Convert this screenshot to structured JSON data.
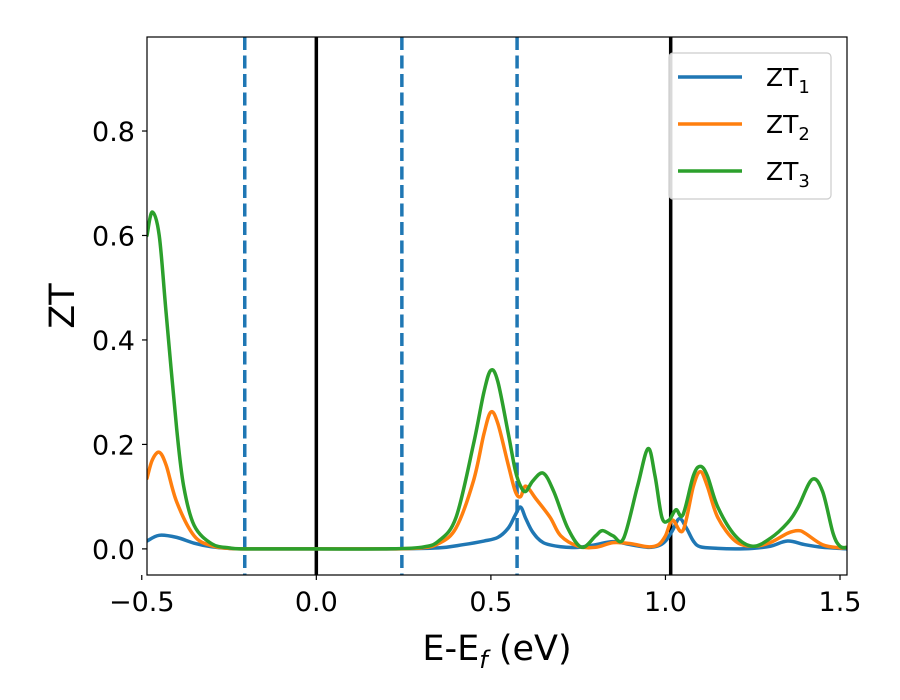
{
  "chart_data": {
    "type": "line",
    "xlabel": {
      "main": "E-E",
      "sub": "f",
      "unit": " (eV)"
    },
    "ylabel": "ZT",
    "xlim": [
      -0.485,
      1.52
    ],
    "ylim": [
      -0.05,
      0.98
    ],
    "x_ticks": [
      -0.5,
      0.0,
      0.5,
      1.0,
      1.5
    ],
    "x_tick_labels": [
      "−0.5",
      "0.0",
      "0.5",
      "1.0",
      "1.5"
    ],
    "y_ticks": [
      0.0,
      0.2,
      0.4,
      0.6,
      0.8
    ],
    "y_tick_labels": [
      "0.0",
      "0.2",
      "0.4",
      "0.6",
      "0.8"
    ],
    "grid": false,
    "legend_position": "top-right",
    "vertical_lines": [
      {
        "x": -0.205,
        "style": "dashed",
        "color": "#1f77b4"
      },
      {
        "x": 0.0,
        "style": "solid",
        "color": "#000000"
      },
      {
        "x": 0.245,
        "style": "dashed",
        "color": "#1f77b4"
      },
      {
        "x": 0.575,
        "style": "dashed",
        "color": "#1f77b4"
      },
      {
        "x": 1.015,
        "style": "solid",
        "color": "#000000"
      }
    ],
    "series": [
      {
        "name": "ZT",
        "name_sub": "1",
        "color": "#1f77b4",
        "x": [
          -0.485,
          -0.45,
          -0.4,
          -0.35,
          -0.3,
          -0.25,
          -0.2,
          0.0,
          0.2,
          0.35,
          0.42,
          0.48,
          0.52,
          0.55,
          0.57,
          0.585,
          0.6,
          0.62,
          0.65,
          0.7,
          0.75,
          0.8,
          0.85,
          0.9,
          0.95,
          0.98,
          1.0,
          1.02,
          1.04,
          1.06,
          1.08,
          1.1,
          1.15,
          1.2,
          1.25,
          1.3,
          1.35,
          1.4,
          1.45,
          1.5,
          1.52
        ],
        "y": [
          0.015,
          0.026,
          0.022,
          0.011,
          0.004,
          0.001,
          0.0,
          0.0,
          0.0,
          0.002,
          0.008,
          0.015,
          0.022,
          0.04,
          0.065,
          0.08,
          0.058,
          0.032,
          0.012,
          0.004,
          0.003,
          0.008,
          0.014,
          0.008,
          0.003,
          0.006,
          0.015,
          0.035,
          0.058,
          0.04,
          0.015,
          0.004,
          0.001,
          0.0,
          0.001,
          0.005,
          0.015,
          0.008,
          0.003,
          0.001,
          0.0
        ]
      },
      {
        "name": "ZT",
        "name_sub": "2",
        "color": "#ff7f0e",
        "x": [
          -0.485,
          -0.47,
          -0.45,
          -0.43,
          -0.4,
          -0.35,
          -0.3,
          -0.25,
          -0.2,
          0.0,
          0.2,
          0.3,
          0.35,
          0.4,
          0.45,
          0.48,
          0.5,
          0.52,
          0.55,
          0.57,
          0.585,
          0.6,
          0.63,
          0.67,
          0.7,
          0.75,
          0.8,
          0.85,
          0.9,
          0.95,
          0.98,
          1.0,
          1.02,
          1.05,
          1.08,
          1.1,
          1.12,
          1.15,
          1.2,
          1.25,
          1.3,
          1.35,
          1.38,
          1.4,
          1.45,
          1.5,
          1.52
        ],
        "y": [
          0.135,
          0.17,
          0.185,
          0.16,
          0.09,
          0.025,
          0.006,
          0.001,
          0.0,
          0.0,
          0.0,
          0.002,
          0.01,
          0.04,
          0.13,
          0.22,
          0.262,
          0.24,
          0.16,
          0.11,
          0.1,
          0.12,
          0.095,
          0.06,
          0.025,
          0.005,
          0.003,
          0.012,
          0.01,
          0.004,
          0.008,
          0.025,
          0.055,
          0.035,
          0.12,
          0.148,
          0.12,
          0.06,
          0.015,
          0.005,
          0.012,
          0.03,
          0.035,
          0.03,
          0.008,
          0.002,
          0.003
        ]
      },
      {
        "name": "ZT",
        "name_sub": "3",
        "color": "#2ca02c",
        "x": [
          -0.485,
          -0.47,
          -0.45,
          -0.43,
          -0.4,
          -0.38,
          -0.35,
          -0.3,
          -0.25,
          -0.2,
          0.0,
          0.2,
          0.3,
          0.35,
          0.4,
          0.45,
          0.48,
          0.5,
          0.52,
          0.55,
          0.57,
          0.585,
          0.6,
          0.62,
          0.65,
          0.68,
          0.72,
          0.76,
          0.8,
          0.82,
          0.85,
          0.88,
          0.92,
          0.95,
          0.97,
          0.99,
          1.01,
          1.03,
          1.05,
          1.08,
          1.1,
          1.12,
          1.15,
          1.2,
          1.25,
          1.3,
          1.35,
          1.38,
          1.42,
          1.45,
          1.48,
          1.5,
          1.52
        ],
        "y": [
          0.6,
          0.645,
          0.6,
          0.45,
          0.23,
          0.12,
          0.045,
          0.01,
          0.002,
          0.0,
          0.0,
          0.0,
          0.003,
          0.015,
          0.06,
          0.2,
          0.3,
          0.342,
          0.32,
          0.22,
          0.15,
          0.12,
          0.11,
          0.13,
          0.145,
          0.11,
          0.04,
          0.003,
          0.025,
          0.035,
          0.025,
          0.02,
          0.12,
          0.192,
          0.14,
          0.06,
          0.055,
          0.075,
          0.065,
          0.14,
          0.158,
          0.14,
          0.08,
          0.025,
          0.005,
          0.02,
          0.05,
          0.08,
          0.133,
          0.11,
          0.03,
          0.005,
          0.003
        ]
      }
    ]
  }
}
